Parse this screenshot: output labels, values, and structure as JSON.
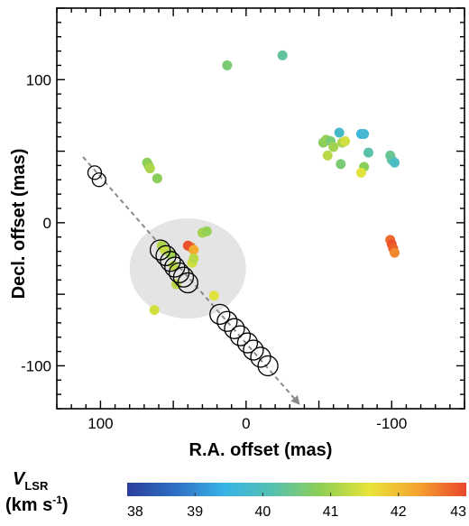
{
  "chart_data": {
    "type": "scatter",
    "xlabel": "R.A. offset (mas)",
    "ylabel": "Decl. offset (mas)",
    "x_reversed": true,
    "xlim": [
      130,
      -150
    ],
    "ylim": [
      -130,
      150
    ],
    "x_ticks": [
      100,
      0,
      -100
    ],
    "y_ticks": [
      100,
      0,
      -100
    ],
    "grid": false,
    "colorbar": {
      "label_main": "V",
      "label_sub": "LSR",
      "label_unit": "(km s",
      "label_unit_sup": "-1",
      "label_unit_close": ")",
      "min": 38,
      "max": 43,
      "ticks": [
        "38",
        "39",
        "40",
        "41",
        "42",
        "43"
      ],
      "stops": [
        "#2b3f9b",
        "#2f6fc4",
        "#38b3e6",
        "#55c0b0",
        "#8fcf55",
        "#e9e43a",
        "#f5a32f",
        "#e9452b"
      ]
    },
    "highlight_region": {
      "type": "ellipse",
      "cx": 40,
      "cy": -32,
      "rx": 40,
      "ry": 35,
      "color": "#e4e4e4"
    },
    "trajectory_arrow": {
      "x0": 112,
      "y0": 46,
      "x1": -35,
      "y1": -125,
      "color": "#8a8a8a"
    },
    "open_circles": [
      {
        "x": 104,
        "y": 35
      },
      {
        "x": 101,
        "y": 30
      },
      {
        "x": 59,
        "y": -19
      },
      {
        "x": 55,
        "y": -23
      },
      {
        "x": 52,
        "y": -27
      },
      {
        "x": 49,
        "y": -31
      },
      {
        "x": 46,
        "y": -35
      },
      {
        "x": 43,
        "y": -38
      },
      {
        "x": 40,
        "y": -42
      },
      {
        "x": 18,
        "y": -64
      },
      {
        "x": 13,
        "y": -69
      },
      {
        "x": 8,
        "y": -74
      },
      {
        "x": 4,
        "y": -79
      },
      {
        "x": -1,
        "y": -84
      },
      {
        "x": -5,
        "y": -89
      },
      {
        "x": -10,
        "y": -94
      },
      {
        "x": -15,
        "y": -100
      }
    ],
    "points": [
      {
        "x": 13,
        "y": 110,
        "v": 40.6
      },
      {
        "x": -25,
        "y": 117,
        "v": 40.3
      },
      {
        "x": 68,
        "y": 42,
        "v": 40.8
      },
      {
        "x": 67,
        "y": 40,
        "v": 40.9
      },
      {
        "x": 66,
        "y": 38,
        "v": 41.1
      },
      {
        "x": 61,
        "y": 31,
        "v": 40.8
      },
      {
        "x": 38,
        "y": -17,
        "v": 42.6
      },
      {
        "x": 40,
        "y": -16,
        "v": 42.9
      },
      {
        "x": 36,
        "y": -19,
        "v": 42.2
      },
      {
        "x": 37,
        "y": -28,
        "v": 41.4
      },
      {
        "x": 36,
        "y": -25,
        "v": 41.2
      },
      {
        "x": 50,
        "y": -30,
        "v": 41.2
      },
      {
        "x": 58,
        "y": -16,
        "v": 41.1
      },
      {
        "x": 56,
        "y": -19,
        "v": 41.3
      },
      {
        "x": 52,
        "y": -22,
        "v": 41.0
      },
      {
        "x": 30,
        "y": -7,
        "v": 41.0
      },
      {
        "x": 27,
        "y": -6,
        "v": 40.9
      },
      {
        "x": 22,
        "y": -51,
        "v": 41.5
      },
      {
        "x": 48,
        "y": -43,
        "v": 41.2
      },
      {
        "x": 63,
        "y": -61,
        "v": 41.4
      },
      {
        "x": -53,
        "y": 56,
        "v": 40.8
      },
      {
        "x": -55,
        "y": 58,
        "v": 40.9
      },
      {
        "x": -58,
        "y": 57,
        "v": 40.6
      },
      {
        "x": -60,
        "y": 53,
        "v": 41.0
      },
      {
        "x": -56,
        "y": 47,
        "v": 41.2
      },
      {
        "x": -64,
        "y": 63,
        "v": 39.8
      },
      {
        "x": -66,
        "y": 56,
        "v": 41.1
      },
      {
        "x": -68,
        "y": 57,
        "v": 41.4
      },
      {
        "x": -65,
        "y": 41,
        "v": 40.6
      },
      {
        "x": -79,
        "y": 62,
        "v": 39.6
      },
      {
        "x": -81,
        "y": 62,
        "v": 39.7
      },
      {
        "x": -84,
        "y": 49,
        "v": 40.2
      },
      {
        "x": -81,
        "y": 39,
        "v": 40.8
      },
      {
        "x": -79,
        "y": 35,
        "v": 41.5
      },
      {
        "x": -99,
        "y": 47,
        "v": 40.4
      },
      {
        "x": -100,
        "y": 44,
        "v": 40.3
      },
      {
        "x": -102,
        "y": 42,
        "v": 39.9
      },
      {
        "x": -99,
        "y": -12,
        "v": 42.7
      },
      {
        "x": -100,
        "y": -15,
        "v": 42.9
      },
      {
        "x": -101,
        "y": -18,
        "v": 42.8
      },
      {
        "x": -102,
        "y": -21,
        "v": 42.5
      }
    ]
  }
}
